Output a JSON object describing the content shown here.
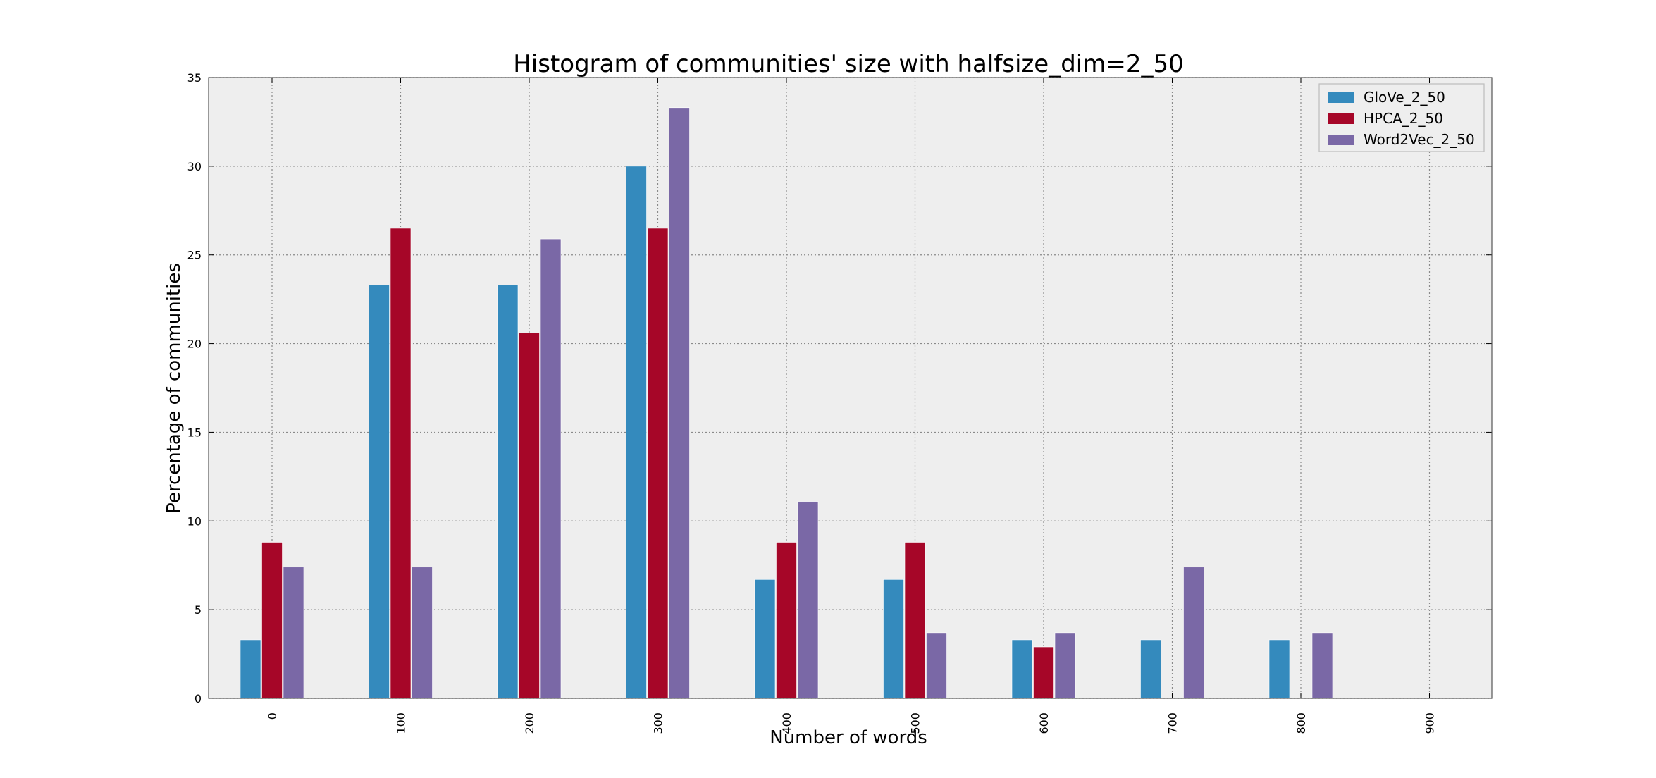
{
  "chart_data": {
    "type": "bar",
    "title": "Histogram of communities' size with halfsize_dim=2_50",
    "xlabel": "Number of words",
    "ylabel": "Percentage of communities",
    "categories": [
      "0",
      "100",
      "200",
      "300",
      "400",
      "500",
      "600",
      "700",
      "800",
      "900"
    ],
    "ylim": [
      0,
      35
    ],
    "yticks": [
      "0",
      "5",
      "10",
      "15",
      "20",
      "25",
      "30",
      "35"
    ],
    "grid": true,
    "legend_position": "top-right",
    "series": [
      {
        "name": "GloVe_2_50",
        "color": "#348abd",
        "values": [
          3.3,
          23.3,
          23.3,
          30.0,
          6.7,
          6.7,
          3.3,
          3.3,
          3.3,
          0
        ]
      },
      {
        "name": "HPCA_2_50",
        "color": "#a60628",
        "values": [
          8.8,
          26.5,
          20.6,
          26.5,
          8.8,
          8.8,
          2.9,
          0,
          0,
          0
        ]
      },
      {
        "name": "Word2Vec_2_50",
        "color": "#7a68a6",
        "values": [
          7.4,
          7.4,
          25.9,
          33.3,
          11.1,
          3.7,
          3.7,
          7.4,
          3.7,
          0
        ]
      }
    ]
  }
}
